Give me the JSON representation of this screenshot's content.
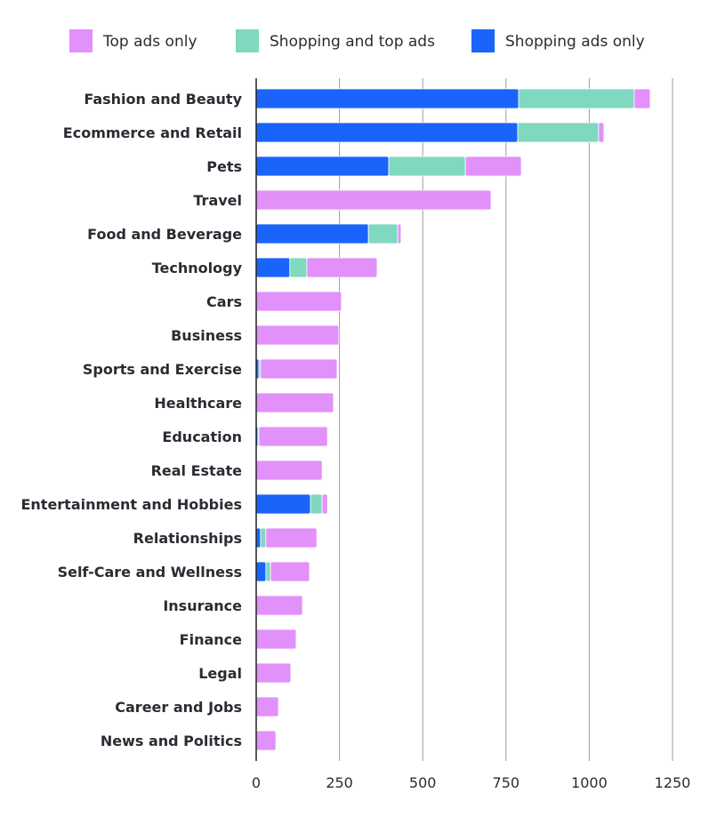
{
  "chart_data": {
    "type": "bar",
    "orientation": "horizontal",
    "stacked": true,
    "categories": [
      "Fashion and Beauty",
      "Ecommerce and Retail",
      "Pets",
      "Travel",
      "Food and Beverage",
      "Technology",
      "Cars",
      "Business",
      "Sports and Exercise",
      "Healthcare",
      "Education",
      "Real Estate",
      "Entertainment and Hobbies",
      "Relationships",
      "Self-Care and Wellness",
      "Insurance",
      "Finance",
      "Legal",
      "Career and Jobs",
      "News and Politics"
    ],
    "series": [
      {
        "name": "Shopping ads only",
        "color": "#1a64fb",
        "values": [
          788,
          785,
          398,
          0,
          337,
          101,
          0,
          0,
          8,
          0,
          5,
          0,
          163,
          13,
          29,
          0,
          0,
          0,
          0,
          0
        ]
      },
      {
        "name": "Shopping and top ads",
        "color": "#80d8c0",
        "values": [
          347,
          243,
          230,
          0,
          88,
          51,
          0,
          0,
          5,
          0,
          3,
          0,
          35,
          16,
          14,
          0,
          0,
          0,
          0,
          0
        ]
      },
      {
        "name": "Top ads only",
        "color": "#e290fa",
        "values": [
          48,
          16,
          168,
          705,
          10,
          211,
          256,
          248,
          230,
          232,
          206,
          198,
          16,
          153,
          117,
          139,
          120,
          104,
          67,
          59
        ]
      }
    ],
    "legend_order": [
      "Top ads only",
      "Shopping and top ads",
      "Shopping ads only"
    ],
    "legend_position": "top",
    "xlim": [
      0,
      1250
    ],
    "xticks": [
      "0",
      "250",
      "500",
      "750",
      "1000",
      "1250"
    ],
    "grid": "vertical"
  }
}
